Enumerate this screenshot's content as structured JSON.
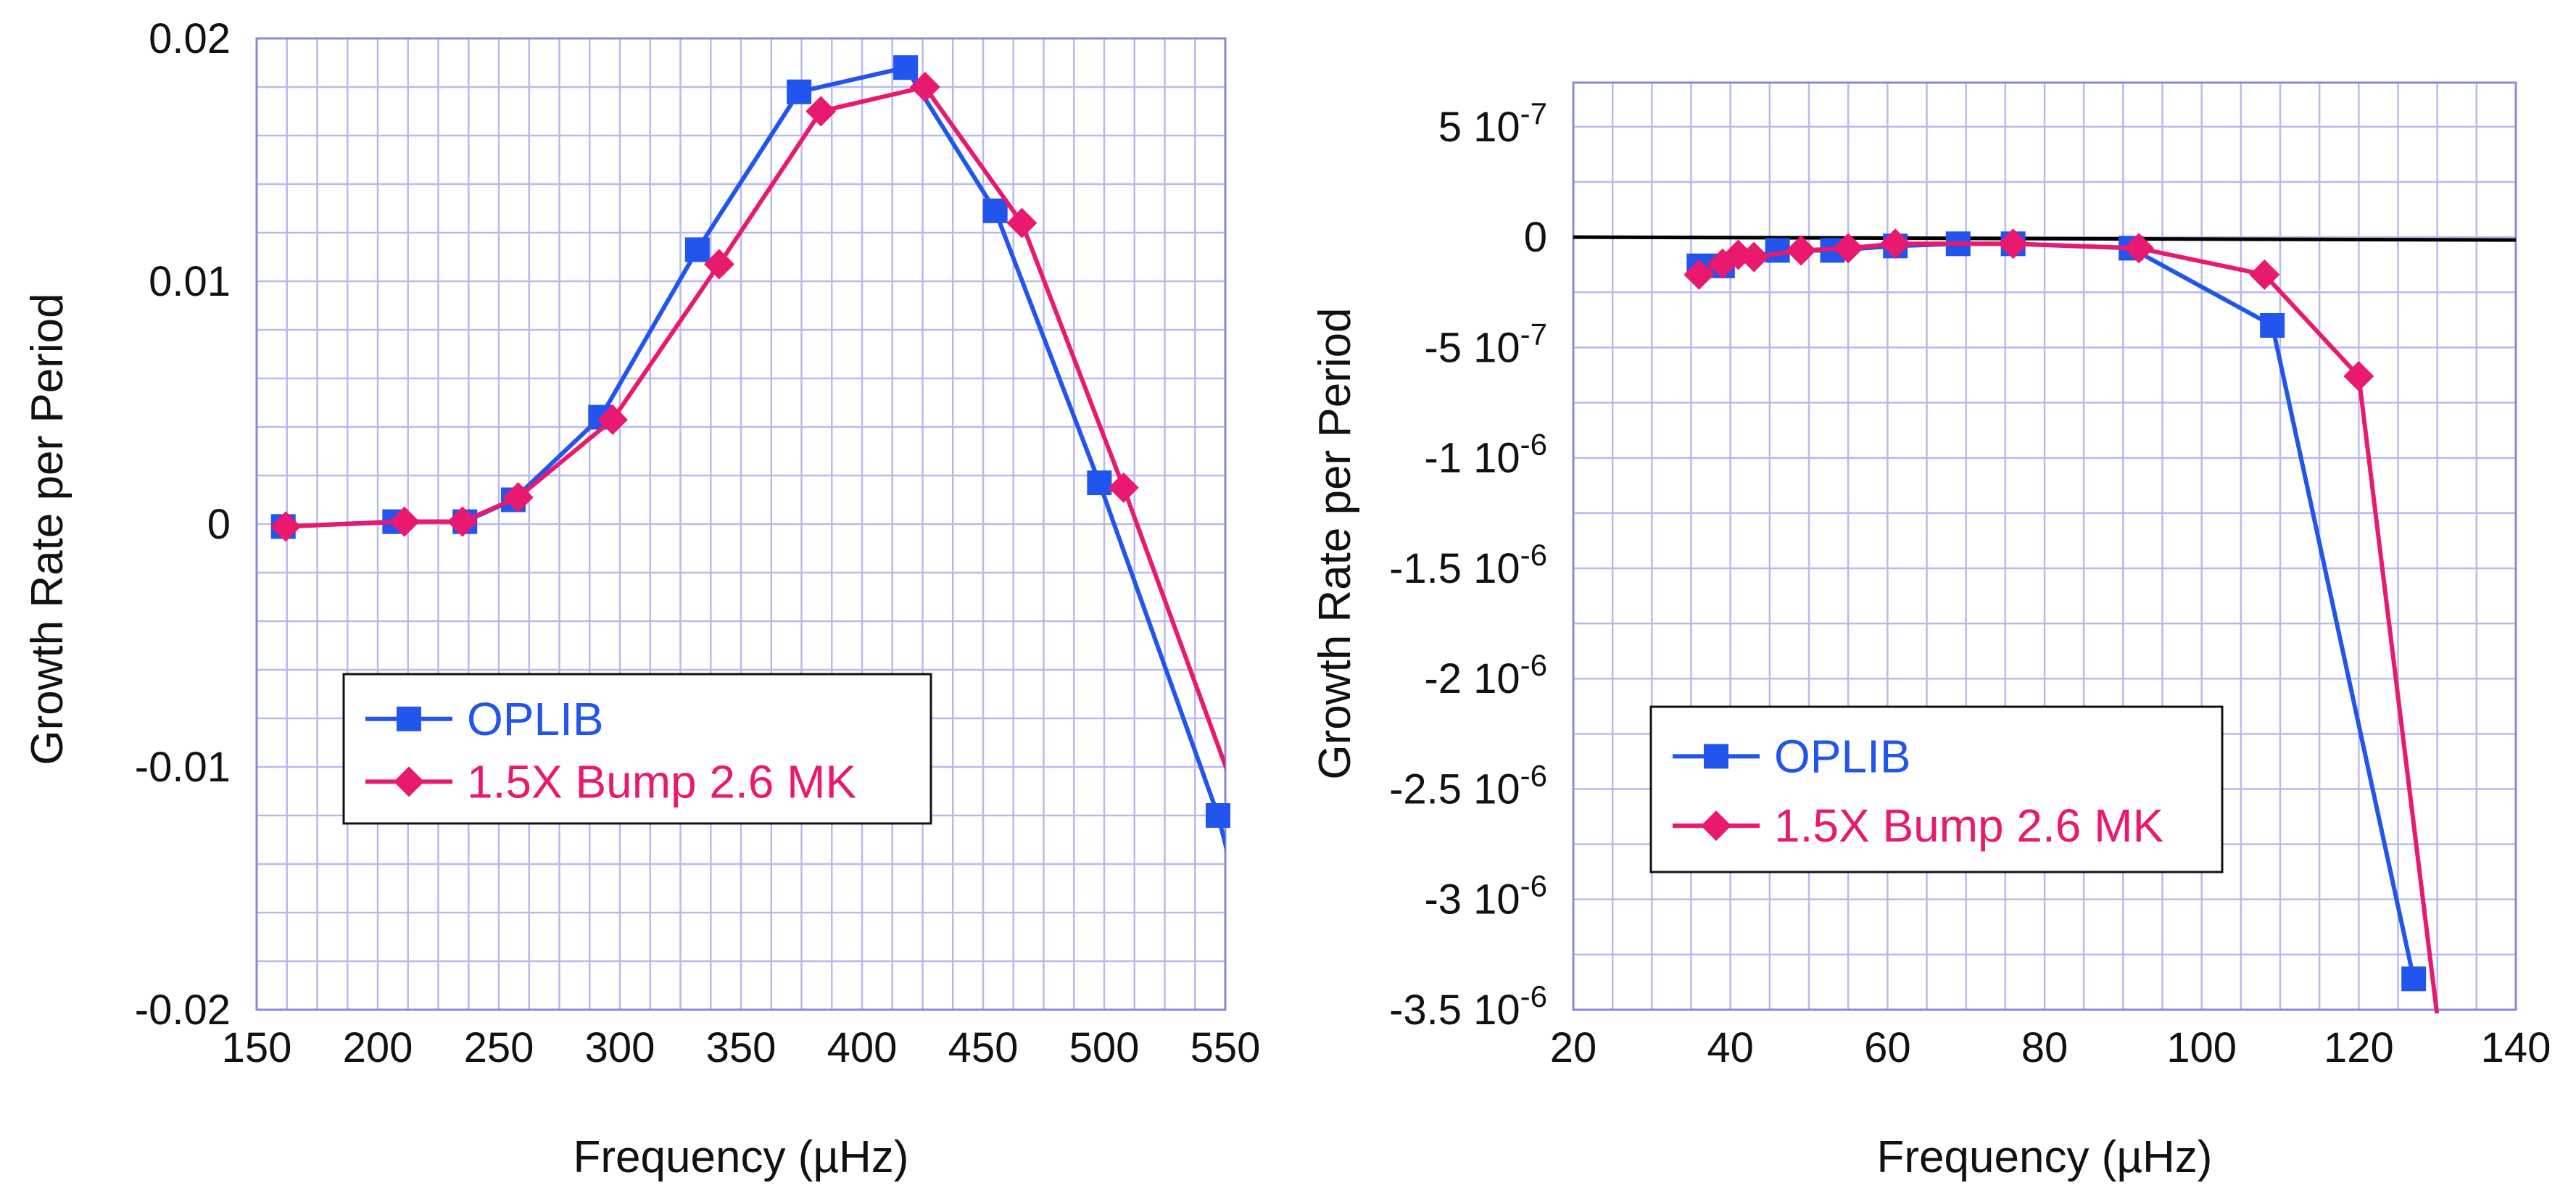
{
  "colors": {
    "oplib": "#2255ee",
    "bump": "#e8196e",
    "zero_line": "#000000"
  },
  "chart_data": [
    {
      "type": "line",
      "xlabel": "Frequency (µHz)",
      "ylabel": "Growth Rate per Period",
      "xlim": [
        150,
        550
      ],
      "ylim": [
        -0.02,
        0.02
      ],
      "xticks": [
        150,
        200,
        250,
        300,
        350,
        400,
        450,
        500,
        550
      ],
      "xtick_labels": [
        "150",
        "200",
        "250",
        "300",
        "350",
        "400",
        "450",
        "500",
        "550"
      ],
      "yticks": [
        0.02,
        0.01,
        0,
        -0.01,
        -0.02
      ],
      "ytick_labels": [
        "0.02",
        "0.01",
        "0",
        "-0.01",
        "-0.02"
      ],
      "grid": true,
      "legend_position": "lower-left",
      "series": [
        {
          "name": "OPLIB",
          "marker": "square",
          "x": [
            161,
            207,
            236,
            256,
            292,
            332,
            374,
            418,
            455,
            498,
            547
          ],
          "y": [
            -0.0001,
            0.0001,
            0.0001,
            0.001,
            0.0044,
            0.0113,
            0.0178,
            0.0188,
            0.0129,
            0.0017,
            -0.012
          ],
          "line_extension": {
            "x": 555,
            "y": -0.0151
          }
        },
        {
          "name": "1.5X Bump 2.6 MK",
          "marker": "diamond",
          "x": [
            162,
            211,
            235,
            258,
            297,
            341,
            383,
            426,
            466,
            508
          ],
          "y": [
            -0.0001,
            0.0001,
            0.0001,
            0.0011,
            0.0043,
            0.0107,
            0.017,
            0.018,
            0.0124,
            0.0015
          ],
          "line_extension": {
            "x": 555,
            "y": -0.0113
          }
        }
      ]
    },
    {
      "type": "line",
      "xlabel": "Frequency (µHz)",
      "ylabel": "Growth Rate per Period",
      "xlim": [
        20,
        140
      ],
      "ylim": [
        -3.5e-06,
        7e-07
      ],
      "xticks": [
        20,
        40,
        60,
        80,
        100,
        120,
        140
      ],
      "xtick_labels": [
        "20",
        "40",
        "60",
        "80",
        "100",
        "120",
        "140"
      ],
      "yticks": [
        5e-07,
        0,
        -5e-07,
        -1e-06,
        -1.5e-06,
        -2e-06,
        -2.5e-06,
        -3e-06,
        -3.5e-06
      ],
      "ytick_labels": [
        {
          "mantissa": "5 10",
          "exponent": "-7"
        },
        {
          "mantissa": "0",
          "exponent": ""
        },
        {
          "mantissa": "-5 10",
          "exponent": "-7"
        },
        {
          "mantissa": "-1 10",
          "exponent": "-6"
        },
        {
          "mantissa": "-1.5 10",
          "exponent": "-6"
        },
        {
          "mantissa": "-2 10",
          "exponent": "-6"
        },
        {
          "mantissa": "-2.5 10",
          "exponent": "-6"
        },
        {
          "mantissa": "-3 10",
          "exponent": "-6"
        },
        {
          "mantissa": "-3.5 10",
          "exponent": "-6"
        }
      ],
      "zero_line": true,
      "grid": true,
      "legend_position": "lower-left",
      "series": [
        {
          "name": "OPLIB",
          "marker": "square",
          "x": [
            36,
            39,
            46,
            53,
            61,
            69,
            76,
            91,
            109,
            127
          ],
          "y": [
            -1.3e-07,
            -1.3e-07,
            -6e-08,
            -6e-08,
            -4e-08,
            -3e-08,
            -3e-08,
            -5e-08,
            -4e-07,
            -3.36e-06
          ],
          "line_extension": null
        },
        {
          "name": "1.5X Bump 2.6 MK",
          "marker": "diamond",
          "x": [
            36,
            39,
            41,
            43,
            49,
            55,
            61,
            76,
            92,
            108,
            120
          ],
          "y": [
            -1.7e-07,
            -1.2e-07,
            -8e-08,
            -9e-08,
            -6e-08,
            -5e-08,
            -3e-08,
            -3e-08,
            -5e-08,
            -1.7e-07,
            -6.3e-07
          ],
          "line_extension": {
            "x": 130,
            "y": -3.53e-06
          }
        }
      ]
    }
  ]
}
